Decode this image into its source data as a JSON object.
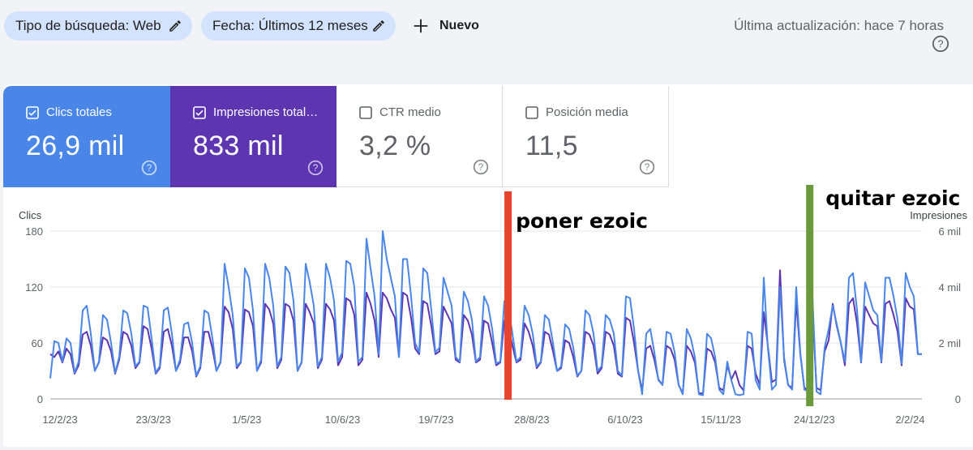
{
  "filters": {
    "search_type": "Tipo de búsqueda: Web",
    "date": "Fecha: Últimos 12 meses",
    "new_label": "Nuevo"
  },
  "last_update": "Última actualización: hace 7 horas",
  "metrics": [
    {
      "label": "Clics totales",
      "value": "26,9 mil",
      "checked": true,
      "color": "#4a86e8"
    },
    {
      "label": "Impresiones total…",
      "value": "833 mil",
      "checked": true,
      "color": "#5e35b1"
    },
    {
      "label": "CTR medio",
      "value": "3,2 %",
      "checked": false
    },
    {
      "label": "Posición media",
      "value": "11,5",
      "checked": false
    }
  ],
  "chart_data": {
    "type": "line",
    "ylabel_left": "Clics",
    "ylabel_right": "Impresiones",
    "yticks_left": [
      "180",
      "120",
      "60",
      "0"
    ],
    "yticks_right": [
      "6 mil",
      "4 mil",
      "2 mil",
      "0"
    ],
    "ylim_left": [
      0,
      180
    ],
    "ylim_right": [
      0,
      6000
    ],
    "xticks": [
      "12/2/23",
      "23/3/23",
      "1/5/23",
      "10/6/23",
      "19/7/23",
      "28/8/23",
      "6/10/23",
      "15/11/23",
      "24/12/23",
      "2/2/24"
    ],
    "start_date": "2023-02-12",
    "end_date": "2024-02-11",
    "grid": true,
    "series": [
      {
        "name": "Clics",
        "color": "#4a86e8",
        "values": [
          22,
          62,
          60,
          40,
          65,
          60,
          28,
          40,
          95,
          100,
          70,
          30,
          40,
          90,
          85,
          60,
          28,
          45,
          95,
          92,
          70,
          35,
          40,
          100,
          98,
          65,
          28,
          35,
          95,
          98,
          70,
          30,
          42,
          80,
          82,
          60,
          25,
          35,
          95,
          92,
          65,
          30,
          40,
          145,
          120,
          90,
          35,
          40,
          140,
          130,
          95,
          30,
          42,
          145,
          130,
          100,
          35,
          45,
          142,
          135,
          105,
          30,
          40,
          145,
          125,
          100,
          35,
          45,
          145,
          130,
          105,
          40,
          50,
          148,
          145,
          120,
          40,
          45,
          172,
          140,
          110,
          48,
          180,
          150,
          130,
          110,
          45,
          150,
          150,
          110,
          60,
          50,
          140,
          135,
          95,
          50,
          55,
          130,
          115,
          100,
          45,
          40,
          115,
          105,
          85,
          40,
          45,
          110,
          100,
          75,
          38,
          40,
          105,
          98,
          70,
          40,
          45,
          100,
          90,
          70,
          35,
          40,
          90,
          85,
          60,
          30,
          35,
          80,
          75,
          55,
          25,
          30,
          95,
          90,
          70,
          30,
          35,
          90,
          85,
          70,
          30,
          25,
          110,
          108,
          75,
          30,
          5,
          70,
          75,
          50,
          20,
          15,
          72,
          70,
          50,
          15,
          5,
          75,
          65,
          45,
          5,
          4,
          70,
          65,
          45,
          10,
          5,
          40,
          20,
          5,
          4,
          5,
          72,
          70,
          20,
          10,
          130,
          55,
          10,
          15,
          120,
          45,
          15,
          10,
          120,
          50,
          10,
          8,
          110,
          8,
          5,
          55,
          75,
          100,
          80,
          60,
          40,
          130,
          135,
          95,
          40,
          125,
          110,
          95,
          90,
          40,
          130,
          130,
          110,
          85,
          38,
          135,
          120,
          110,
          48,
          48
        ],
        "values_note": "values are in clicks (left axis)"
      },
      {
        "name": "Impresiones",
        "color": "#5e35b1",
        "values": [
          1600,
          1500,
          1700,
          1300,
          1800,
          1600,
          900,
          1200,
          2300,
          2400,
          1900,
          1000,
          1300,
          2200,
          2100,
          1700,
          900,
          1400,
          2400,
          2300,
          1900,
          1100,
          1300,
          2600,
          2500,
          1800,
          900,
          1100,
          2400,
          2500,
          1900,
          1000,
          1300,
          2200,
          2200,
          1700,
          800,
          1100,
          2400,
          2400,
          1800,
          1000,
          1300,
          3300,
          3100,
          2500,
          1100,
          1300,
          3200,
          3100,
          2600,
          1000,
          1300,
          3400,
          3200,
          2700,
          1100,
          1400,
          3400,
          3300,
          2800,
          1000,
          1300,
          3400,
          3100,
          2700,
          1100,
          1400,
          3400,
          3200,
          2800,
          1200,
          1500,
          3600,
          3500,
          3000,
          1200,
          1400,
          3800,
          3400,
          2800,
          1500,
          3800,
          3600,
          3200,
          2900,
          1500,
          3800,
          3700,
          2900,
          1800,
          1600,
          3500,
          3400,
          2600,
          1600,
          1700,
          3300,
          3000,
          2700,
          1400,
          1300,
          3000,
          2800,
          2300,
          1300,
          1400,
          2800,
          2700,
          2000,
          1200,
          1300,
          2800,
          2600,
          1900,
          1300,
          1400,
          2700,
          2400,
          1900,
          1100,
          1300,
          2400,
          2300,
          1700,
          1000,
          1100,
          2100,
          2000,
          1500,
          800,
          1000,
          2400,
          2300,
          1900,
          900,
          1100,
          2400,
          2300,
          1900,
          900,
          800,
          2900,
          2800,
          2000,
          1000,
          300,
          1800,
          1900,
          1400,
          700,
          500,
          1900,
          1800,
          1400,
          500,
          200,
          1900,
          1700,
          1300,
          200,
          200,
          1800,
          1700,
          1300,
          400,
          300,
          1200,
          700,
          1000,
          500,
          300,
          1900,
          1800,
          900,
          500,
          3100,
          1900,
          600,
          700,
          4600,
          1400,
          500,
          400,
          3500,
          1600,
          400,
          300,
          3200,
          400,
          300,
          1700,
          2100,
          3400,
          2600,
          2000,
          1200,
          3400,
          3600,
          2700,
          1300,
          3300,
          3000,
          2700,
          2600,
          1300,
          3400,
          3500,
          3000,
          2400,
          1200,
          3600,
          3300,
          3200,
          1600,
          1600
        ],
        "values_note": "values are in impressions (right axis)"
      }
    ],
    "annotations": [
      {
        "label": "poner ezoic",
        "date": "2023-08-22",
        "color": "#e8432d"
      },
      {
        "label": "quitar ezoic",
        "date": "2023-12-26",
        "color": "#6a9a3c"
      }
    ]
  }
}
